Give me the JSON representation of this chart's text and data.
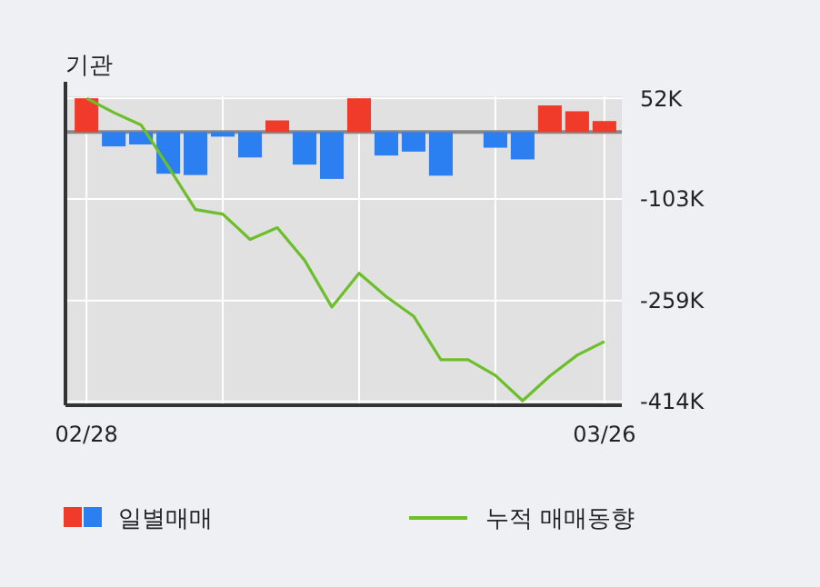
{
  "chart_data": {
    "type": "bar",
    "title": "기관",
    "categories": [
      "02/28",
      null,
      null,
      null,
      null,
      null,
      null,
      null,
      null,
      null,
      null,
      null,
      null,
      null,
      null,
      null,
      null,
      null,
      null,
      "03/26"
    ],
    "series": [
      {
        "name": "일별매매",
        "colors": [
          "#f03a2a",
          "#2c7ff0",
          "#2c7ff0",
          "#2c7ff0",
          "#2c7ff0",
          "#2c7ff0",
          "#2c7ff0",
          "#f03a2a",
          "#2c7ff0",
          "#2c7ff0",
          "#f03a2a",
          "#2c7ff0",
          "#2c7ff0",
          "#2c7ff0",
          "#2c7ff0",
          "#2c7ff0",
          "#2c7ff0",
          "#f03a2a",
          "#f03a2a",
          "#f03a2a"
        ],
        "values": [
          52,
          -22,
          -19,
          -64,
          -66,
          -7,
          -39,
          18,
          -50,
          -72,
          52,
          -36,
          -30,
          -67,
          0,
          -24,
          -42,
          41,
          32,
          17
        ]
      },
      {
        "name": "누적 매매동향",
        "type": "line",
        "color": "#6cbf2a",
        "values": [
          52,
          30,
          11,
          -53,
          -119,
          -126,
          -165,
          -147,
          -197,
          -269,
          -217,
          -253,
          -283,
          -350,
          -350,
          -374,
          -413,
          -375,
          -343,
          -322
        ]
      }
    ],
    "ylim": [
      -420,
      55
    ],
    "yticks": [
      {
        "value": 52,
        "label": "52K"
      },
      {
        "value": -103,
        "label": "-103K"
      },
      {
        "value": -259,
        "label": "-259K"
      },
      {
        "value": -414,
        "label": "-414K"
      }
    ],
    "grid": true,
    "legend": "bottom"
  }
}
